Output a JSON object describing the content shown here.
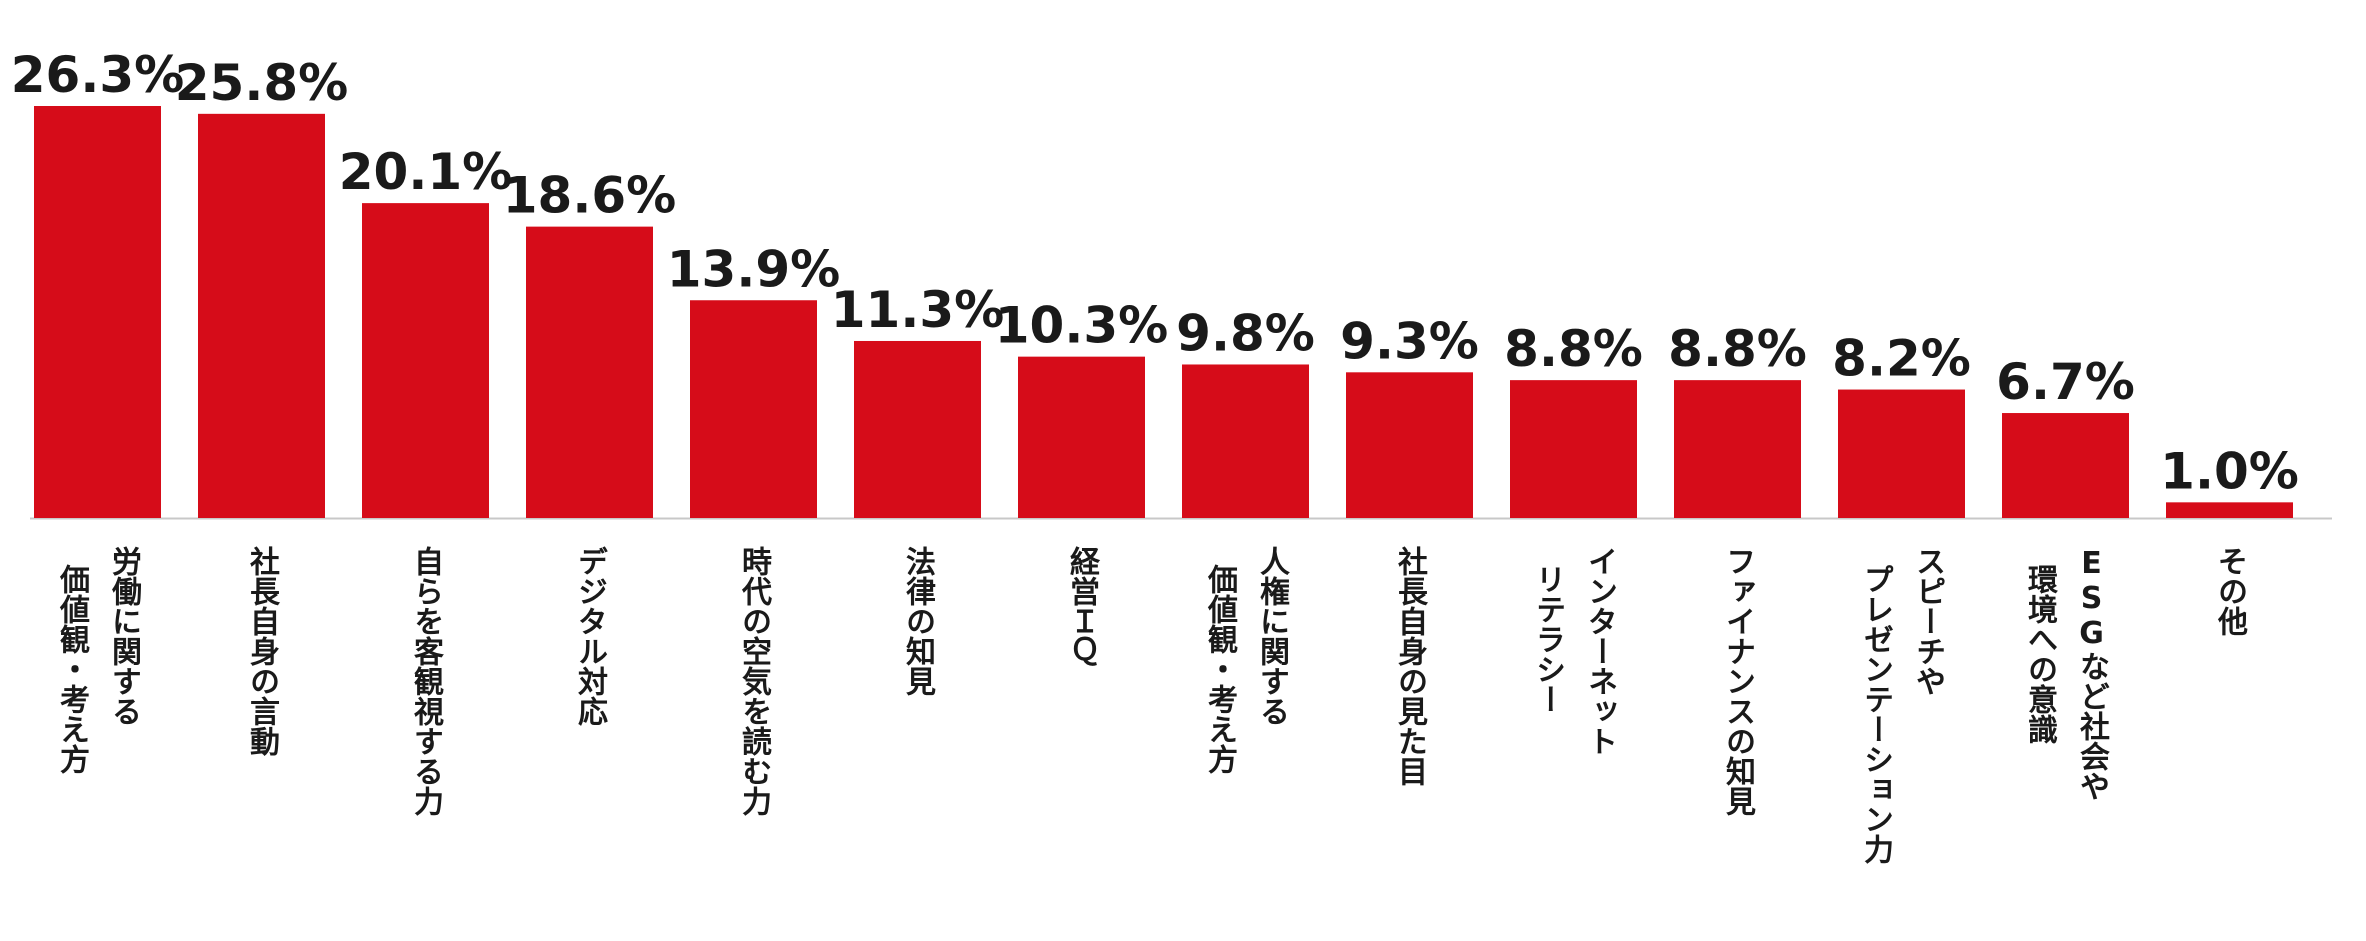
{
  "chart_data": {
    "type": "bar",
    "unit": "%",
    "bar_color": "#d60c19",
    "axis_color": "#c8c8c8",
    "categories": [
      [
        "労働に関する",
        "価値観・考え方"
      ],
      [
        "社長自身の言動"
      ],
      [
        "自らを客観視する力"
      ],
      [
        "デジタル対応"
      ],
      [
        "時代の空気を読む力"
      ],
      [
        "法律の知見"
      ],
      [
        "経営ＩＱ"
      ],
      [
        "人権に関する",
        "価値観・考え方"
      ],
      [
        "社長自身の見た目"
      ],
      [
        "インターネット",
        "リテラシー"
      ],
      [
        "ファイナンスの知見"
      ],
      [
        "スピーチや",
        "プレゼンテーション力"
      ],
      [
        "ESGなど社会や",
        "環境への意識"
      ],
      [
        "その他"
      ]
    ],
    "values": [
      26.3,
      25.8,
      20.1,
      18.6,
      13.9,
      11.3,
      10.3,
      9.8,
      9.3,
      8.8,
      8.8,
      8.2,
      6.7,
      1.0
    ],
    "value_labels": [
      "26.3%",
      "25.8%",
      "20.1%",
      "18.6%",
      "13.9%",
      "11.3%",
      "10.3%",
      "9.8%",
      "9.3%",
      "8.8%",
      "8.8%",
      "8.2%",
      "6.7%",
      "1.0%"
    ],
    "ylim": [
      0,
      26.3
    ],
    "grid": false,
    "legend": "none"
  }
}
